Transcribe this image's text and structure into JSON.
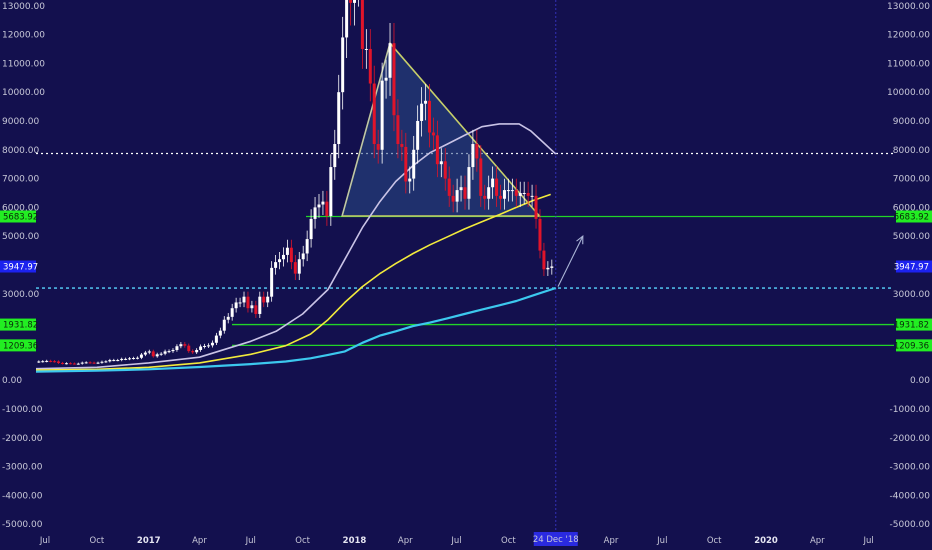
{
  "colors": {
    "background": "#13104e",
    "axis_text": "#c8c8d8",
    "candle_up": "#ffffff",
    "candle_down": "#e0142a",
    "ma_white": "#c9c3e6",
    "ma_yellow": "#f2ea3c",
    "ma_cyan": "#3cc8ee",
    "triangle_edge": "#c7cf6a",
    "triangle_fill": "#2a4a86",
    "support_line": "#22d428",
    "resistance_dotted": "#ffffff",
    "cyan_dashed": "#59d6ff",
    "badge_green": "#22ee22",
    "badge_blue": "#1c22ee",
    "date_badge": "#2a2ae0",
    "arrow": "#aab4d6"
  },
  "date_marker": "24 Dec '18",
  "chart_data": {
    "type": "candlestick",
    "title": "",
    "xlabel": "",
    "ylabel": "",
    "ylim": [
      -5200,
      13200
    ],
    "grid": false,
    "yticks": [
      13000,
      12000,
      11000,
      10000,
      9000,
      8000,
      7000,
      6000,
      5000,
      4000,
      3000,
      2000,
      1000,
      0,
      -1000,
      -2000,
      -3000,
      -4000,
      -5000
    ],
    "ytick_labels": [
      "13000.00",
      "12000.00",
      "11000.00",
      "10000.00",
      "9000.00",
      "8000.00",
      "7000.00",
      "6000.00",
      "5000.00",
      "4000.00",
      "3000.00",
      "2000.00",
      "1000.00",
      "0.00",
      "-1000.00",
      "-2000.00",
      "-3000.00",
      "-4000.00",
      "-5000.00"
    ],
    "x_range": [
      "2016-06-15",
      "2020-08-15"
    ],
    "xticks": [
      {
        "date": "2016-07-01",
        "label": "Jul",
        "bold": false
      },
      {
        "date": "2016-10-01",
        "label": "Oct",
        "bold": false
      },
      {
        "date": "2017-01-01",
        "label": "2017",
        "bold": true
      },
      {
        "date": "2017-04-01",
        "label": "Apr",
        "bold": false
      },
      {
        "date": "2017-07-01",
        "label": "Jul",
        "bold": false
      },
      {
        "date": "2017-10-01",
        "label": "Oct",
        "bold": false
      },
      {
        "date": "2018-01-01",
        "label": "2018",
        "bold": true
      },
      {
        "date": "2018-04-01",
        "label": "Apr",
        "bold": false
      },
      {
        "date": "2018-07-01",
        "label": "Jul",
        "bold": false
      },
      {
        "date": "2018-10-01",
        "label": "Oct",
        "bold": false
      },
      {
        "date": "2019-04-01",
        "label": "Apr",
        "bold": false
      },
      {
        "date": "2019-07-01",
        "label": "Jul",
        "bold": false
      },
      {
        "date": "2019-10-01",
        "label": "Oct",
        "bold": false
      },
      {
        "date": "2020-01-01",
        "label": "2020",
        "bold": true
      },
      {
        "date": "2020-04-01",
        "label": "Apr",
        "bold": false
      },
      {
        "date": "2020-07-01",
        "label": "Jul",
        "bold": false
      }
    ],
    "price_levels": [
      {
        "value": 5683.92,
        "label": "5683.92",
        "style": "solid-green",
        "badge": "green"
      },
      {
        "value": 3947.97,
        "label": "3947.97",
        "style": "none",
        "badge": "blue"
      },
      {
        "value": 1931.82,
        "label": "1931.82",
        "style": "solid-green",
        "badge": "green"
      },
      {
        "value": 1209.36,
        "label": "1209.36",
        "style": "solid-green",
        "badge": "green"
      },
      {
        "value": 7870,
        "label": "",
        "style": "dotted-white",
        "badge": "none"
      },
      {
        "value": 3200,
        "label": "",
        "style": "dashed-cyan",
        "badge": "none"
      }
    ],
    "triangle": [
      {
        "date": "2017-12-10",
        "value": 5700
      },
      {
        "date": "2018-03-05",
        "value": 11700
      },
      {
        "date": "2018-11-25",
        "value": 5700
      }
    ],
    "arrow": {
      "from": {
        "date": "2018-12-28",
        "value": 3250
      },
      "to": {
        "date": "2019-02-10",
        "value": 5000
      }
    },
    "vline_date": "2018-12-24",
    "candle_dates": [
      "2016-06-20",
      "2016-06-27",
      "2016-07-04",
      "2016-07-11",
      "2016-07-18",
      "2016-07-25",
      "2016-08-01",
      "2016-08-08",
      "2016-08-15",
      "2016-08-22",
      "2016-08-29",
      "2016-09-05",
      "2016-09-12",
      "2016-09-19",
      "2016-09-26",
      "2016-10-03",
      "2016-10-10",
      "2016-10-17",
      "2016-10-24",
      "2016-10-31",
      "2016-11-07",
      "2016-11-14",
      "2016-11-21",
      "2016-11-28",
      "2016-12-05",
      "2016-12-12",
      "2016-12-19",
      "2016-12-26",
      "2017-01-02",
      "2017-01-09",
      "2017-01-16",
      "2017-01-23",
      "2017-01-30",
      "2017-02-06",
      "2017-02-13",
      "2017-02-20",
      "2017-02-27",
      "2017-03-06",
      "2017-03-13",
      "2017-03-20",
      "2017-03-27",
      "2017-04-03",
      "2017-04-10",
      "2017-04-17",
      "2017-04-24",
      "2017-05-01",
      "2017-05-08",
      "2017-05-15",
      "2017-05-22",
      "2017-05-29",
      "2017-06-05",
      "2017-06-12",
      "2017-06-19",
      "2017-06-26",
      "2017-07-03",
      "2017-07-10",
      "2017-07-17",
      "2017-07-24",
      "2017-07-31",
      "2017-08-07",
      "2017-08-14",
      "2017-08-21",
      "2017-08-28",
      "2017-09-04",
      "2017-09-11",
      "2017-09-18",
      "2017-09-25",
      "2017-10-02",
      "2017-10-09",
      "2017-10-16",
      "2017-10-23",
      "2017-10-30",
      "2017-11-06",
      "2017-11-13",
      "2017-11-20",
      "2017-11-27",
      "2017-12-04",
      "2017-12-11",
      "2017-12-18",
      "2017-12-25",
      "2018-01-01",
      "2018-01-08",
      "2018-01-15",
      "2018-01-22",
      "2018-01-29",
      "2018-02-05",
      "2018-02-12",
      "2018-02-19",
      "2018-02-26",
      "2018-03-05",
      "2018-03-12",
      "2018-03-19",
      "2018-03-26",
      "2018-04-02",
      "2018-04-09",
      "2018-04-16",
      "2018-04-23",
      "2018-04-30",
      "2018-05-07",
      "2018-05-14",
      "2018-05-21",
      "2018-05-28",
      "2018-06-04",
      "2018-06-11",
      "2018-06-18",
      "2018-06-25",
      "2018-07-02",
      "2018-07-09",
      "2018-07-16",
      "2018-07-23",
      "2018-07-30",
      "2018-08-06",
      "2018-08-13",
      "2018-08-20",
      "2018-08-27",
      "2018-09-03",
      "2018-09-10",
      "2018-09-17",
      "2018-09-24",
      "2018-10-01",
      "2018-10-08",
      "2018-10-15",
      "2018-10-22",
      "2018-10-29",
      "2018-11-05",
      "2018-11-12",
      "2018-11-19",
      "2018-11-26",
      "2018-12-03",
      "2018-12-10",
      "2018-12-17"
    ],
    "candle_closes": [
      650,
      660,
      670,
      660,
      650,
      600,
      580,
      590,
      580,
      575,
      575,
      610,
      620,
      610,
      605,
      610,
      640,
      655,
      700,
      700,
      700,
      740,
      740,
      760,
      770,
      780,
      890,
      960,
      1000,
      830,
      900,
      920,
      1000,
      1010,
      1050,
      1180,
      1250,
      1200,
      1010,
      970,
      1050,
      1170,
      1190,
      1210,
      1300,
      1550,
      1720,
      2100,
      2200,
      2500,
      2700,
      2700,
      2900,
      2500,
      2600,
      2300,
      2900,
      2700,
      2900,
      3900,
      4100,
      4200,
      4350,
      4600,
      4100,
      3700,
      4200,
      4400,
      4900,
      5600,
      6000,
      6100,
      6200,
      5700,
      7400,
      8200,
      10000,
      11900,
      14000,
      13100,
      13800,
      14200,
      11500,
      11500,
      10300,
      8200,
      8000,
      10400,
      10500,
      11700,
      9200,
      8200,
      8100,
      6900,
      7000,
      8000,
      9000,
      9600,
      9700,
      8600,
      8500,
      7500,
      7600,
      7000,
      6400,
      6200,
      6600,
      6700,
      6300,
      7400,
      8200,
      7700,
      6400,
      6300,
      6700,
      7000,
      6400,
      6300,
      6600,
      6600,
      6600,
      6400,
      6500,
      6500,
      6400,
      6400,
      5600,
      4500,
      3850,
      3900,
      3950
    ],
    "series": [
      {
        "name": "",
        "color": "#c9c3e6",
        "points": [
          [
            "2016-06-15",
            400
          ],
          [
            "2016-10-01",
            450
          ],
          [
            "2017-01-01",
            600
          ],
          [
            "2017-04-01",
            800
          ],
          [
            "2017-07-01",
            1350
          ],
          [
            "2017-08-15",
            1700
          ],
          [
            "2017-10-01",
            2300
          ],
          [
            "2017-11-15",
            3150
          ],
          [
            "2017-12-15",
            4200
          ],
          [
            "2018-01-15",
            5300
          ],
          [
            "2018-02-15",
            6200
          ],
          [
            "2018-03-15",
            6900
          ],
          [
            "2018-04-15",
            7450
          ],
          [
            "2018-05-15",
            7900
          ],
          [
            "2018-06-15",
            8200
          ],
          [
            "2018-07-15",
            8500
          ],
          [
            "2018-08-15",
            8800
          ],
          [
            "2018-09-15",
            8900
          ],
          [
            "2018-10-20",
            8900
          ],
          [
            "2018-11-10",
            8650
          ],
          [
            "2018-12-05",
            8200
          ],
          [
            "2018-12-24",
            7850
          ]
        ]
      },
      {
        "name": "",
        "color": "#f2ea3c",
        "points": [
          [
            "2016-06-15",
            350
          ],
          [
            "2016-10-01",
            380
          ],
          [
            "2017-01-01",
            450
          ],
          [
            "2017-04-01",
            600
          ],
          [
            "2017-07-01",
            900
          ],
          [
            "2017-09-01",
            1200
          ],
          [
            "2017-10-15",
            1600
          ],
          [
            "2017-11-15",
            2100
          ],
          [
            "2017-12-15",
            2700
          ],
          [
            "2018-01-15",
            3250
          ],
          [
            "2018-02-15",
            3700
          ],
          [
            "2018-03-15",
            4050
          ],
          [
            "2018-04-15",
            4400
          ],
          [
            "2018-05-15",
            4700
          ],
          [
            "2018-06-15",
            4980
          ],
          [
            "2018-07-15",
            5250
          ],
          [
            "2018-08-15",
            5500
          ],
          [
            "2018-09-15",
            5750
          ],
          [
            "2018-10-15",
            6000
          ],
          [
            "2018-11-15",
            6250
          ],
          [
            "2018-12-15",
            6450
          ]
        ]
      },
      {
        "name": "",
        "color": "#3cc8ee",
        "points": [
          [
            "2016-06-15",
            300
          ],
          [
            "2016-10-01",
            330
          ],
          [
            "2017-01-01",
            380
          ],
          [
            "2017-04-01",
            460
          ],
          [
            "2017-07-01",
            560
          ],
          [
            "2017-09-01",
            650
          ],
          [
            "2017-10-15",
            760
          ],
          [
            "2017-11-15",
            880
          ],
          [
            "2017-12-15",
            1000
          ],
          [
            "2018-01-15",
            1300
          ],
          [
            "2018-02-15",
            1550
          ],
          [
            "2018-03-15",
            1700
          ],
          [
            "2018-04-15",
            1880
          ],
          [
            "2018-05-15",
            2000
          ],
          [
            "2018-06-15",
            2150
          ],
          [
            "2018-07-15",
            2300
          ],
          [
            "2018-08-15",
            2450
          ],
          [
            "2018-09-15",
            2600
          ],
          [
            "2018-10-15",
            2750
          ],
          [
            "2018-11-15",
            2950
          ],
          [
            "2018-12-24",
            3200
          ]
        ]
      }
    ]
  }
}
